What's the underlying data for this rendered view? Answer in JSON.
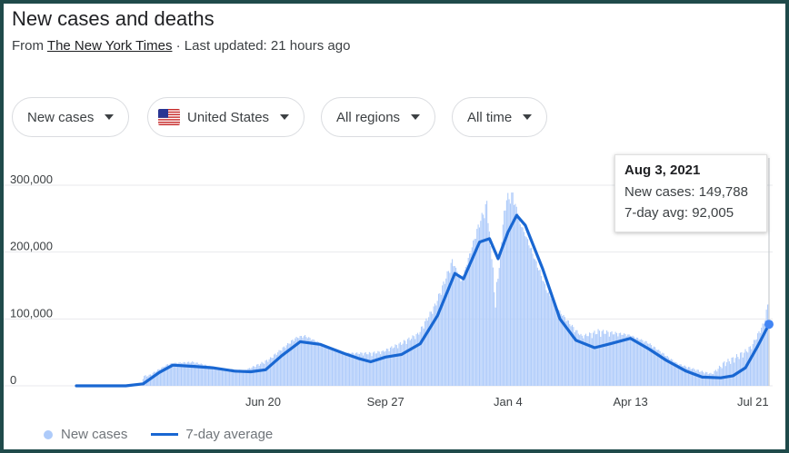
{
  "header": {
    "title": "New cases and deaths",
    "source_prefix": "From",
    "source_name": "The New York Times",
    "updated": "· Last updated: 21 hours ago"
  },
  "filters": {
    "metric": "New cases",
    "country": "United States",
    "region": "All regions",
    "period": "All time"
  },
  "tooltip": {
    "date": "Aug 3, 2021",
    "cases_label": "New cases: 149,788",
    "avg_label": "7-day avg: 92,005"
  },
  "legend": {
    "bars": "New cases",
    "line": "7-day average"
  },
  "colors": {
    "bar": "#aecbfa",
    "line": "#1967d2",
    "grid": "#e8eaed",
    "text": "#70757a"
  },
  "chart_data": {
    "type": "bar",
    "title": "",
    "xlabel": "",
    "ylabel": "",
    "ylim": [
      0,
      300000
    ],
    "yticks": [
      0,
      100000,
      200000,
      300000
    ],
    "ytick_labels": [
      "0",
      "100,000",
      "200,000",
      "300,000"
    ],
    "xtick_labels": [
      "Jun 20",
      "Sep 27",
      "Jan 4",
      "Apr 13",
      "Jul 21"
    ],
    "xtick_dates": [
      "2020-06-20",
      "2020-09-27",
      "2021-01-04",
      "2021-04-13",
      "2021-07-21"
    ],
    "x_range": [
      "2020-01-21",
      "2021-08-03"
    ],
    "grid": true,
    "legend_position": "bottom-left",
    "series": [
      {
        "name": "7-day average",
        "type": "line",
        "points": [
          [
            "2020-01-21",
            0
          ],
          [
            "2020-03-01",
            0
          ],
          [
            "2020-03-15",
            3000
          ],
          [
            "2020-03-28",
            20000
          ],
          [
            "2020-04-08",
            31000
          ],
          [
            "2020-04-25",
            29000
          ],
          [
            "2020-05-10",
            27000
          ],
          [
            "2020-05-28",
            22000
          ],
          [
            "2020-06-10",
            21000
          ],
          [
            "2020-06-22",
            24000
          ],
          [
            "2020-07-05",
            45000
          ],
          [
            "2020-07-20",
            66000
          ],
          [
            "2020-08-05",
            62000
          ],
          [
            "2020-08-25",
            48000
          ],
          [
            "2020-09-05",
            41000
          ],
          [
            "2020-09-15",
            36000
          ],
          [
            "2020-09-27",
            43000
          ],
          [
            "2020-10-10",
            47000
          ],
          [
            "2020-10-25",
            63000
          ],
          [
            "2020-11-08",
            105000
          ],
          [
            "2020-11-22",
            168000
          ],
          [
            "2020-11-29",
            160000
          ],
          [
            "2020-12-12",
            215000
          ],
          [
            "2020-12-20",
            220000
          ],
          [
            "2020-12-27",
            190000
          ],
          [
            "2021-01-04",
            230000
          ],
          [
            "2021-01-11",
            255000
          ],
          [
            "2021-01-18",
            240000
          ],
          [
            "2021-02-01",
            175000
          ],
          [
            "2021-02-15",
            100000
          ],
          [
            "2021-02-28",
            68000
          ],
          [
            "2021-03-15",
            57000
          ],
          [
            "2021-03-28",
            63000
          ],
          [
            "2021-04-13",
            71000
          ],
          [
            "2021-04-28",
            55000
          ],
          [
            "2021-05-12",
            38000
          ],
          [
            "2021-05-28",
            22000
          ],
          [
            "2021-06-10",
            13000
          ],
          [
            "2021-06-25",
            12000
          ],
          [
            "2021-07-05",
            15000
          ],
          [
            "2021-07-15",
            27000
          ],
          [
            "2021-07-25",
            60000
          ],
          [
            "2021-08-03",
            92005
          ]
        ]
      },
      {
        "name": "New cases",
        "type": "bar",
        "points": [
          [
            "2020-03-20",
            18000
          ],
          [
            "2020-04-04",
            34000
          ],
          [
            "2020-04-24",
            38000
          ],
          [
            "2020-05-15",
            27000
          ],
          [
            "2020-06-05",
            24000
          ],
          [
            "2020-06-26",
            45000
          ],
          [
            "2020-07-16",
            75000
          ],
          [
            "2020-07-24",
            78000
          ],
          [
            "2020-08-20",
            49000
          ],
          [
            "2020-09-25",
            55000
          ],
          [
            "2020-10-23",
            83000
          ],
          [
            "2020-11-06",
            128000
          ],
          [
            "2020-11-20",
            196000
          ],
          [
            "2020-11-27",
            155000
          ],
          [
            "2020-12-11",
            248000
          ],
          [
            "2020-12-18",
            290000
          ],
          [
            "2020-12-25",
            98000
          ],
          [
            "2021-01-02",
            298000
          ],
          [
            "2021-01-08",
            300000
          ],
          [
            "2021-01-14",
            240000
          ],
          [
            "2021-02-05",
            135000
          ],
          [
            "2021-03-05",
            78000
          ],
          [
            "2021-03-18",
            90000
          ],
          [
            "2021-04-09",
            80000
          ],
          [
            "2021-04-27",
            68000
          ],
          [
            "2021-05-21",
            35000
          ],
          [
            "2021-06-18",
            20000
          ],
          [
            "2021-06-28",
            42000
          ],
          [
            "2021-07-20",
            65000
          ],
          [
            "2021-07-30",
            100000
          ],
          [
            "2021-08-02",
            130000
          ],
          [
            "2021-08-03",
            149788
          ]
        ]
      }
    ],
    "selected_point": {
      "date": "2021-08-03",
      "new_cases": 149788,
      "avg": 92005
    }
  }
}
